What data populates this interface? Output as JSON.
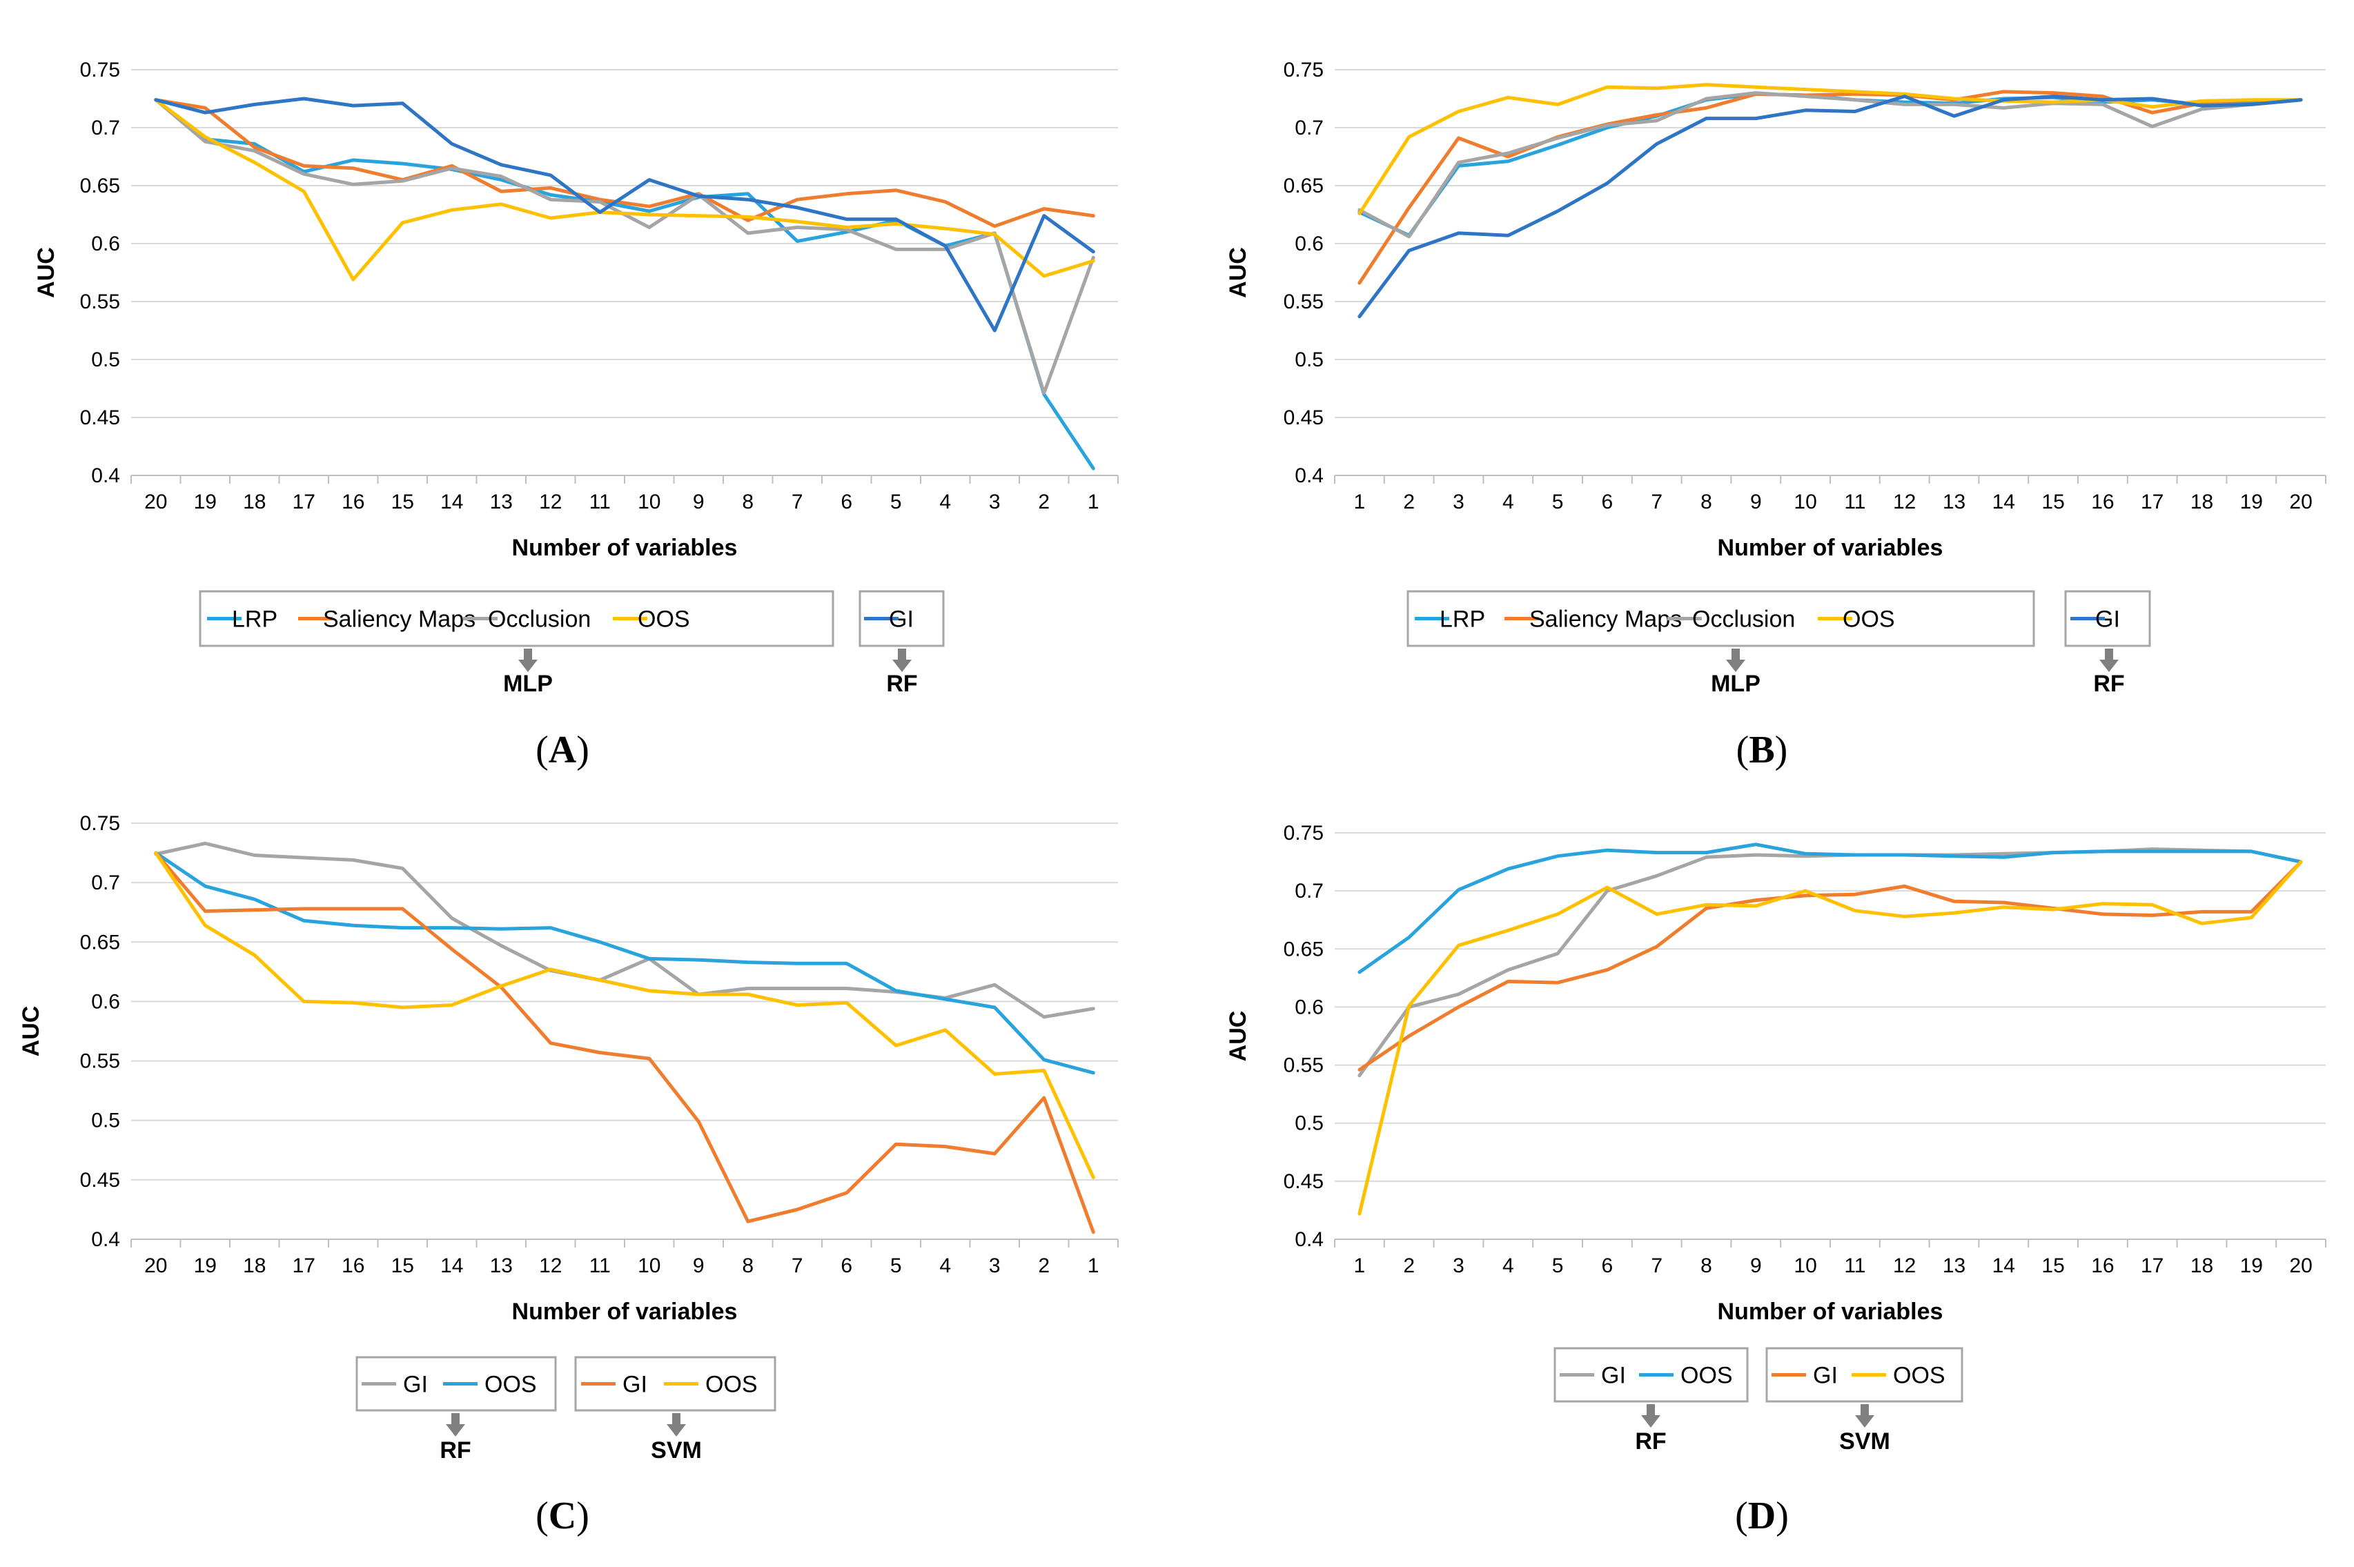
{
  "colors": {
    "lrp": "#29A3DE",
    "saliency": "#F07C2E",
    "occlusion": "#A5A5A5",
    "oos": "#FFC000",
    "gi_rf": "#2E75C6",
    "arrow": "#808080",
    "grid": "#D9D9D9",
    "text": "#000000"
  },
  "chart_data": [
    {
      "type": "line",
      "panel_label": "A",
      "xlabel": "Number of variables",
      "ylabel": "AUC",
      "categories": [
        "20",
        "19",
        "18",
        "17",
        "16",
        "15",
        "14",
        "13",
        "12",
        "11",
        "10",
        "9",
        "8",
        "7",
        "6",
        "5",
        "4",
        "3",
        "2",
        "1"
      ],
      "ylim": [
        0.4,
        0.75
      ],
      "yticks": [
        "0.75",
        "0.7",
        "0.65",
        "0.6",
        "0.55",
        "0.5",
        "0.45",
        "0.4"
      ],
      "series": [
        {
          "name": "LRP",
          "color": "#29A3DE",
          "values": [
            0.724,
            0.69,
            0.686,
            0.662,
            0.672,
            0.669,
            0.664,
            0.655,
            0.642,
            0.636,
            0.628,
            0.64,
            0.643,
            0.602,
            0.61,
            0.62,
            0.598,
            0.609,
            0.47,
            0.406
          ]
        },
        {
          "name": "Saliency Maps",
          "color": "#F07C2E",
          "values": [
            0.724,
            0.717,
            0.683,
            0.667,
            0.665,
            0.655,
            0.667,
            0.645,
            0.648,
            0.638,
            0.632,
            0.643,
            0.62,
            0.638,
            0.643,
            0.646,
            0.636,
            0.615,
            0.63,
            0.624
          ]
        },
        {
          "name": "Occlusion",
          "color": "#A5A5A5",
          "values": [
            0.724,
            0.688,
            0.68,
            0.66,
            0.651,
            0.654,
            0.665,
            0.658,
            0.638,
            0.636,
            0.614,
            0.642,
            0.609,
            0.614,
            0.612,
            0.595,
            0.595,
            0.609,
            0.471,
            0.588
          ]
        },
        {
          "name": "OOS",
          "color": "#FFC000",
          "values": [
            0.724,
            0.692,
            0.67,
            0.645,
            0.569,
            0.618,
            0.629,
            0.634,
            0.622,
            0.627,
            0.625,
            0.624,
            0.623,
            0.619,
            0.614,
            0.617,
            0.613,
            0.608,
            0.572,
            0.585
          ]
        },
        {
          "name": "GI",
          "color": "#2E75C6",
          "values": [
            0.724,
            0.713,
            0.72,
            0.725,
            0.719,
            0.721,
            0.686,
            0.668,
            0.659,
            0.627,
            0.655,
            0.641,
            0.638,
            0.631,
            0.621,
            0.621,
            0.598,
            0.525,
            0.624,
            0.593
          ]
        }
      ],
      "legend_groups": [
        {
          "items": [
            0,
            1,
            2,
            3
          ],
          "label": "MLP"
        },
        {
          "items": [
            4
          ],
          "label": "RF"
        }
      ]
    },
    {
      "type": "line",
      "panel_label": "B",
      "xlabel": "Number of variables",
      "ylabel": "AUC",
      "categories": [
        "1",
        "2",
        "3",
        "4",
        "5",
        "6",
        "7",
        "8",
        "9",
        "10",
        "11",
        "12",
        "13",
        "14",
        "15",
        "16",
        "17",
        "18",
        "19",
        "20"
      ],
      "ylim": [
        0.4,
        0.75
      ],
      "yticks": [
        "0.75",
        "0.7",
        "0.65",
        "0.6",
        "0.55",
        "0.5",
        "0.45",
        "0.4"
      ],
      "series": [
        {
          "name": "LRP",
          "color": "#29A3DE",
          "values": [
            0.627,
            0.607,
            0.667,
            0.671,
            0.685,
            0.7,
            0.71,
            0.724,
            0.729,
            0.728,
            0.724,
            0.722,
            0.721,
            0.725,
            0.726,
            0.722,
            0.724,
            0.72,
            0.722,
            0.724
          ]
        },
        {
          "name": "Saliency Maps",
          "color": "#F07C2E",
          "values": [
            0.566,
            0.631,
            0.691,
            0.675,
            0.692,
            0.703,
            0.711,
            0.717,
            0.729,
            0.728,
            0.729,
            0.728,
            0.724,
            0.731,
            0.73,
            0.727,
            0.713,
            0.721,
            0.72,
            0.724
          ]
        },
        {
          "name": "Occlusion",
          "color": "#A5A5A5",
          "values": [
            0.629,
            0.606,
            0.67,
            0.678,
            0.691,
            0.702,
            0.706,
            0.725,
            0.73,
            0.727,
            0.724,
            0.72,
            0.72,
            0.717,
            0.721,
            0.72,
            0.701,
            0.716,
            0.72,
            0.724
          ]
        },
        {
          "name": "OOS",
          "color": "#FFC000",
          "values": [
            0.626,
            0.692,
            0.714,
            0.726,
            0.72,
            0.735,
            0.734,
            0.737,
            0.735,
            0.733,
            0.731,
            0.729,
            0.725,
            0.723,
            0.722,
            0.724,
            0.718,
            0.723,
            0.724,
            0.724
          ]
        },
        {
          "name": "GI",
          "color": "#2E75C6",
          "values": [
            0.537,
            0.594,
            0.609,
            0.607,
            0.628,
            0.652,
            0.686,
            0.708,
            0.708,
            0.715,
            0.714,
            0.727,
            0.71,
            0.724,
            0.727,
            0.724,
            0.725,
            0.719,
            0.72,
            0.724
          ]
        }
      ],
      "legend_groups": [
        {
          "items": [
            0,
            1,
            2,
            3
          ],
          "label": "MLP"
        },
        {
          "items": [
            4
          ],
          "label": "RF"
        }
      ]
    },
    {
      "type": "line",
      "panel_label": "C",
      "xlabel": "Number of variables",
      "ylabel": "AUC",
      "categories": [
        "20",
        "19",
        "18",
        "17",
        "16",
        "15",
        "14",
        "13",
        "12",
        "11",
        "10",
        "9",
        "8",
        "7",
        "6",
        "5",
        "4",
        "3",
        "2",
        "1"
      ],
      "ylim": [
        0.4,
        0.75
      ],
      "yticks": [
        "0.75",
        "0.7",
        "0.65",
        "0.6",
        "0.55",
        "0.5",
        "0.45",
        "0.4"
      ],
      "series": [
        {
          "name": "GI",
          "color": "#A5A5A5",
          "values": [
            0.724,
            0.733,
            0.723,
            0.721,
            0.719,
            0.712,
            0.67,
            0.647,
            0.626,
            0.618,
            0.636,
            0.606,
            0.611,
            0.611,
            0.611,
            0.608,
            0.603,
            0.614,
            0.587,
            0.594
          ]
        },
        {
          "name": "OOS",
          "color": "#29A3DE",
          "values": [
            0.725,
            0.697,
            0.686,
            0.668,
            0.664,
            0.662,
            0.662,
            0.661,
            0.662,
            0.65,
            0.636,
            0.635,
            0.633,
            0.632,
            0.632,
            0.609,
            0.602,
            0.595,
            0.551,
            0.54
          ]
        },
        {
          "name": "GI",
          "color": "#F07C2E",
          "values": [
            0.725,
            0.676,
            0.677,
            0.678,
            0.678,
            0.678,
            0.644,
            0.612,
            0.565,
            0.557,
            0.552,
            0.499,
            0.415,
            0.425,
            0.439,
            0.48,
            0.478,
            0.472,
            0.519,
            0.406
          ]
        },
        {
          "name": "OOS",
          "color": "#FFC000",
          "values": [
            0.725,
            0.664,
            0.639,
            0.6,
            0.599,
            0.595,
            0.597,
            0.613,
            0.627,
            0.618,
            0.609,
            0.606,
            0.606,
            0.597,
            0.599,
            0.563,
            0.576,
            0.539,
            0.542,
            0.452
          ]
        }
      ],
      "legend_groups": [
        {
          "items": [
            0,
            1
          ],
          "label": "RF"
        },
        {
          "items": [
            2,
            3
          ],
          "label": "SVM"
        }
      ]
    },
    {
      "type": "line",
      "panel_label": "D",
      "xlabel": "Number of variables",
      "ylabel": "AUC",
      "categories": [
        "1",
        "2",
        "3",
        "4",
        "5",
        "6",
        "7",
        "8",
        "9",
        "10",
        "11",
        "12",
        "13",
        "14",
        "15",
        "16",
        "17",
        "18",
        "19",
        "20"
      ],
      "ylim": [
        0.4,
        0.75
      ],
      "yticks": [
        "0.75",
        "0.7",
        "0.65",
        "0.6",
        "0.55",
        "0.5",
        "0.45",
        "0.4"
      ],
      "series": [
        {
          "name": "GI",
          "color": "#A5A5A5",
          "values": [
            0.541,
            0.6,
            0.611,
            0.632,
            0.646,
            0.7,
            0.713,
            0.729,
            0.731,
            0.73,
            0.731,
            0.731,
            0.731,
            0.732,
            0.733,
            0.734,
            0.736,
            0.735,
            0.734,
            0.725
          ]
        },
        {
          "name": "OOS",
          "color": "#29A3DE",
          "values": [
            0.63,
            0.66,
            0.701,
            0.719,
            0.73,
            0.735,
            0.733,
            0.733,
            0.74,
            0.732,
            0.731,
            0.731,
            0.73,
            0.729,
            0.733,
            0.734,
            0.734,
            0.734,
            0.734,
            0.725
          ]
        },
        {
          "name": "GI",
          "color": "#F07C2E",
          "values": [
            0.546,
            0.575,
            0.6,
            0.622,
            0.621,
            0.632,
            0.652,
            0.685,
            0.692,
            0.696,
            0.697,
            0.704,
            0.691,
            0.69,
            0.685,
            0.68,
            0.679,
            0.682,
            0.682,
            0.725
          ]
        },
        {
          "name": "OOS",
          "color": "#FFC000",
          "values": [
            0.422,
            0.601,
            0.653,
            0.666,
            0.68,
            0.703,
            0.68,
            0.688,
            0.687,
            0.7,
            0.683,
            0.678,
            0.681,
            0.686,
            0.684,
            0.689,
            0.688,
            0.672,
            0.677,
            0.725
          ]
        }
      ],
      "legend_groups": [
        {
          "items": [
            0,
            1
          ],
          "label": "RF"
        },
        {
          "items": [
            2,
            3
          ],
          "label": "SVM"
        }
      ]
    }
  ]
}
